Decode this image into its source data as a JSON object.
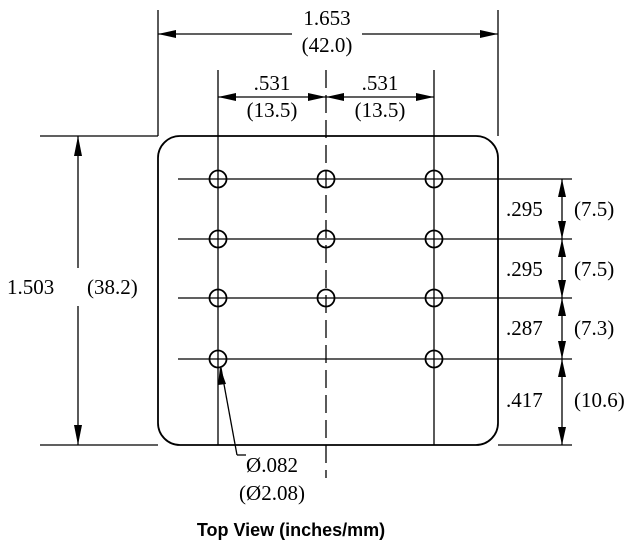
{
  "overall_width": {
    "inches": "1.653",
    "mm": "(42.0)"
  },
  "column_spacing_left": {
    "inches": ".531",
    "mm": "(13.5)"
  },
  "column_spacing_right": {
    "inches": ".531",
    "mm": "(13.5)"
  },
  "overall_height": {
    "inches": "1.503",
    "mm": "(38.2)"
  },
  "row_spacings": [
    {
      "inches": ".295",
      "mm": "(7.5)"
    },
    {
      "inches": ".295",
      "mm": "(7.5)"
    },
    {
      "inches": ".287",
      "mm": "(7.3)"
    },
    {
      "inches": ".417",
      "mm": "(10.6)"
    }
  ],
  "hole_diameter": {
    "inches": "Ø.082",
    "mm": "(Ø2.08)"
  },
  "caption": "Top View  (inches/mm)",
  "hole_grid": {
    "rows": 4,
    "columns": 3,
    "holes_per_row": [
      [
        1,
        1,
        1
      ],
      [
        1,
        1,
        1
      ],
      [
        1,
        1,
        1
      ],
      [
        1,
        0,
        1
      ]
    ]
  }
}
